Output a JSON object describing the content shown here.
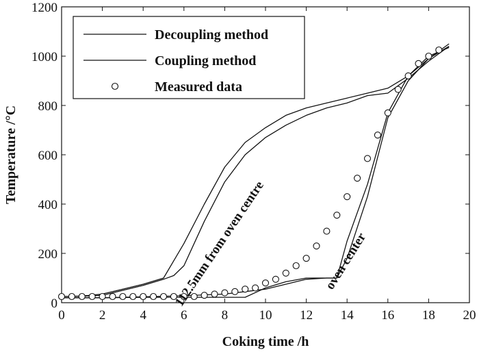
{
  "chart_data": {
    "type": "line",
    "xlabel": "Coking time /h",
    "ylabel": "Temperature /°C",
    "xlim": [
      0,
      20
    ],
    "ylim": [
      0,
      1200
    ],
    "xticks": [
      0,
      2,
      4,
      6,
      8,
      10,
      12,
      14,
      16,
      18,
      20
    ],
    "yticks": [
      0,
      200,
      400,
      600,
      800,
      1000,
      1200
    ],
    "grid": false,
    "legend_position": "top-left",
    "series": [
      {
        "name": "Decoupling method",
        "style": "line",
        "group": "112.5mm from oven centre",
        "points": [
          [
            0,
            25
          ],
          [
            1,
            27
          ],
          [
            2,
            35
          ],
          [
            3,
            55
          ],
          [
            4,
            75
          ],
          [
            5,
            100
          ],
          [
            6,
            240
          ],
          [
            7,
            400
          ],
          [
            8,
            550
          ],
          [
            9,
            650
          ],
          [
            10,
            710
          ],
          [
            11,
            760
          ],
          [
            12,
            790
          ],
          [
            13,
            810
          ],
          [
            14,
            830
          ],
          [
            15,
            850
          ],
          [
            16,
            870
          ],
          [
            17,
            920
          ],
          [
            18,
            990
          ],
          [
            19,
            1050
          ]
        ]
      },
      {
        "name": "Decoupling method",
        "style": "line",
        "group": "oven center",
        "points": [
          [
            0,
            20
          ],
          [
            2,
            20
          ],
          [
            4,
            22
          ],
          [
            6,
            22
          ],
          [
            8,
            22
          ],
          [
            9,
            22
          ],
          [
            10,
            60
          ],
          [
            11,
            85
          ],
          [
            12,
            100
          ],
          [
            13.5,
            100
          ],
          [
            14,
            180
          ],
          [
            15,
            430
          ],
          [
            16,
            750
          ],
          [
            17,
            900
          ],
          [
            18,
            990
          ],
          [
            19,
            1040
          ]
        ]
      },
      {
        "name": "Coupling method",
        "style": "line",
        "group": "112.5mm from oven centre",
        "points": [
          [
            0,
            25
          ],
          [
            1,
            26
          ],
          [
            2,
            30
          ],
          [
            3,
            50
          ],
          [
            4,
            70
          ],
          [
            5,
            95
          ],
          [
            5.5,
            110
          ],
          [
            6,
            150
          ],
          [
            7,
            330
          ],
          [
            8,
            490
          ],
          [
            9,
            600
          ],
          [
            10,
            670
          ],
          [
            11,
            720
          ],
          [
            12,
            760
          ],
          [
            13,
            790
          ],
          [
            14,
            810
          ],
          [
            15,
            840
          ],
          [
            16,
            850
          ],
          [
            17,
            910
          ],
          [
            18,
            980
          ],
          [
            19,
            1040
          ]
        ]
      },
      {
        "name": "Coupling method",
        "style": "line",
        "group": "oven center",
        "points": [
          [
            0,
            20
          ],
          [
            2,
            20
          ],
          [
            4,
            24
          ],
          [
            6,
            28
          ],
          [
            8,
            35
          ],
          [
            9,
            45
          ],
          [
            10,
            55
          ],
          [
            11,
            75
          ],
          [
            12,
            95
          ],
          [
            13,
            100
          ],
          [
            13.5,
            100
          ],
          [
            14,
            250
          ],
          [
            15,
            480
          ],
          [
            16,
            770
          ],
          [
            17,
            920
          ],
          [
            18,
            1000
          ],
          [
            19,
            1035
          ]
        ]
      },
      {
        "name": "Measured data",
        "style": "marker",
        "points": [
          [
            0,
            25
          ],
          [
            0.5,
            25
          ],
          [
            1,
            25
          ],
          [
            1.5,
            25
          ],
          [
            2,
            25
          ],
          [
            2.5,
            25
          ],
          [
            3,
            25
          ],
          [
            3.5,
            25
          ],
          [
            4,
            25
          ],
          [
            4.5,
            25
          ],
          [
            5,
            25
          ],
          [
            5.5,
            25
          ],
          [
            6,
            25
          ],
          [
            6.5,
            25
          ],
          [
            7,
            30
          ],
          [
            7.5,
            35
          ],
          [
            8,
            40
          ],
          [
            8.5,
            45
          ],
          [
            9,
            55
          ],
          [
            9.5,
            60
          ],
          [
            10,
            80
          ],
          [
            10.5,
            95
          ],
          [
            11,
            120
          ],
          [
            11.5,
            150
          ],
          [
            12,
            180
          ],
          [
            12.5,
            230
          ],
          [
            13,
            290
          ],
          [
            13.5,
            355
          ],
          [
            14,
            430
          ],
          [
            14.5,
            505
          ],
          [
            15,
            585
          ],
          [
            15.5,
            680
          ],
          [
            16,
            770
          ],
          [
            16.5,
            865
          ],
          [
            17,
            920
          ],
          [
            17.5,
            970
          ],
          [
            18,
            1000
          ],
          [
            18.5,
            1025
          ]
        ]
      }
    ],
    "legend": [
      {
        "label": "Decoupling method",
        "marker": "line"
      },
      {
        "label": "Coupling method",
        "marker": "line"
      },
      {
        "label": "Measured data",
        "marker": "circle"
      }
    ],
    "annotations": [
      {
        "text": "112.5mm from oven centre",
        "x": 7.9,
        "y": 230
      },
      {
        "text": "oven center",
        "x": 14.1,
        "y": 160
      }
    ]
  }
}
